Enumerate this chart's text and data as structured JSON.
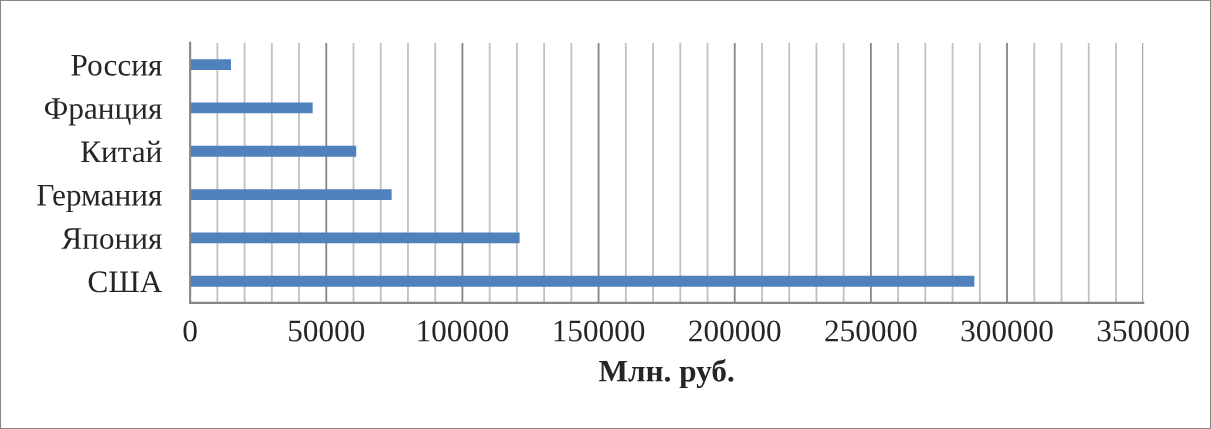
{
  "chart_data": {
    "type": "bar",
    "orientation": "horizontal",
    "xlabel": "Млн. руб.",
    "categories": [
      "Россия",
      "Франция",
      "Китай",
      "Германия",
      "Япония",
      "США"
    ],
    "values": [
      15000,
      45000,
      61000,
      74000,
      121000,
      288000
    ],
    "color": "#4f81bd",
    "xlim": [
      0,
      350000
    ],
    "xticks": [
      0,
      {
        "value": 10000,
        "label": null
      },
      {
        "value": 20000,
        "label": null
      },
      {
        "value": 30000,
        "label": null
      },
      {
        "value": 40000,
        "label": null
      },
      50000,
      {
        "value": 60000,
        "label": null
      },
      {
        "value": 70000,
        "label": null
      },
      {
        "value": 80000,
        "label": null
      },
      {
        "value": 90000,
        "label": null
      },
      100000,
      {
        "value": 110000,
        "label": null
      },
      {
        "value": 120000,
        "label": null
      },
      {
        "value": 130000,
        "label": null
      },
      {
        "value": 140000,
        "label": null
      },
      150000,
      {
        "value": 160000,
        "label": null
      },
      {
        "value": 170000,
        "label": null
      },
      {
        "value": 180000,
        "label": null
      },
      {
        "value": 190000,
        "label": null
      },
      200000,
      {
        "value": 210000,
        "label": null
      },
      {
        "value": 220000,
        "label": null
      },
      {
        "value": 230000,
        "label": null
      },
      {
        "value": 240000,
        "label": null
      },
      250000,
      {
        "value": 260000,
        "label": null
      },
      {
        "value": 270000,
        "label": null
      },
      {
        "value": 280000,
        "label": null
      },
      {
        "value": 290000,
        "label": null
      },
      300000,
      {
        "value": 310000,
        "label": null
      },
      {
        "value": 320000,
        "label": null
      },
      {
        "value": 330000,
        "label": null
      },
      {
        "value": 340000,
        "label": null
      },
      350000
    ],
    "grid": "x",
    "legend": false
  }
}
